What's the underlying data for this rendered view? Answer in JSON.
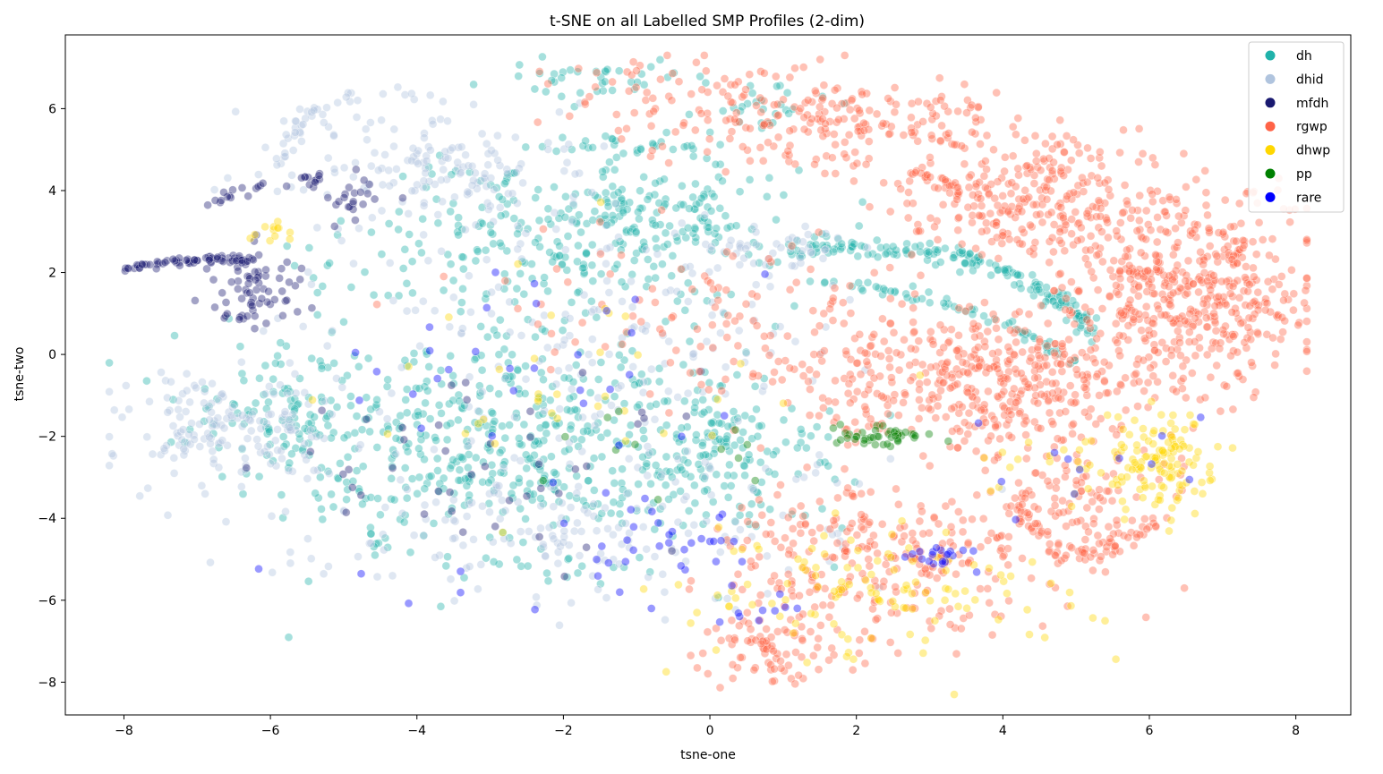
{
  "chart_data": {
    "type": "scatter",
    "title": "t-SNE on all Labelled SMP Profiles (2-dim)",
    "xlabel": "tsne-one",
    "ylabel": "tsne-two",
    "xlim": [
      -8.8,
      8.75
    ],
    "ylim": [
      -8.8,
      7.8
    ],
    "x_ticks": [
      -8,
      -6,
      -4,
      -2,
      0,
      2,
      4,
      6,
      8
    ],
    "y_ticks": [
      -8,
      -6,
      -4,
      -2,
      0,
      2,
      4,
      6
    ],
    "grid": false,
    "legend_position": "top-right",
    "marker_alpha": 0.4,
    "series": [
      {
        "name": "dh",
        "color": "#20b2aa",
        "clusters": [
          {
            "cx": -2.6,
            "cy": -2.4,
            "sx": 1.6,
            "sy": 1.5,
            "n": 520
          },
          {
            "cx": -5.8,
            "cy": -1.5,
            "sx": 0.7,
            "sy": 1.0,
            "n": 110
          },
          {
            "cx": -2.0,
            "cy": 2.8,
            "sx": 1.3,
            "sy": 1.0,
            "n": 260
          },
          {
            "cx": -0.4,
            "cy": 3.6,
            "sx": 0.6,
            "sy": 0.5,
            "n": 80
          },
          {
            "cx": 0.3,
            "cy": -2.2,
            "sx": 0.7,
            "sy": 0.8,
            "n": 110
          },
          {
            "cx": -1.6,
            "cy": 6.7,
            "sx": 0.9,
            "sy": 0.25,
            "n": 40
          },
          {
            "cx": -0.9,
            "cy": 5.1,
            "sx": 0.6,
            "sy": 0.15,
            "n": 30
          },
          {
            "cx": 0.7,
            "cy": 6.1,
            "sx": 0.4,
            "sy": 0.35,
            "n": 25
          }
        ],
        "arcs": [
          {
            "x0": 1.0,
            "y0": 2.5,
            "x1": 5.3,
            "y1": 0.4,
            "bulge": 0.2,
            "w": 0.15,
            "n": 180
          },
          {
            "x0": 1.5,
            "y0": 1.8,
            "x1": 5.0,
            "y1": -0.3,
            "bulge": 0.1,
            "w": 0.1,
            "n": 60
          }
        ]
      },
      {
        "name": "dhid",
        "color": "#b0c4de",
        "clusters": [
          {
            "cx": -6.6,
            "cy": -1.8,
            "sx": 0.8,
            "sy": 0.8,
            "n": 170
          },
          {
            "cx": -3.5,
            "cy": 4.5,
            "sx": 1.1,
            "sy": 0.8,
            "n": 170
          },
          {
            "cx": -2.0,
            "cy": -4.2,
            "sx": 1.8,
            "sy": 0.9,
            "n": 190
          },
          {
            "cx": -1.5,
            "cy": 0.2,
            "sx": 1.8,
            "sy": 1.4,
            "n": 160
          },
          {
            "cx": 0.9,
            "cy": 2.5,
            "sx": 0.7,
            "sy": 0.3,
            "n": 50
          }
        ],
        "arcs": [
          {
            "x0": -5.9,
            "y0": 4.6,
            "x1": -3.5,
            "y1": 6.2,
            "bulge": 0.3,
            "w": 0.12,
            "n": 40
          }
        ]
      },
      {
        "name": "mfdh",
        "color": "#191970",
        "clusters": [
          {
            "cx": -6.2,
            "cy": 1.6,
            "sx": 0.35,
            "sy": 0.45,
            "n": 70
          },
          {
            "cx": -4.9,
            "cy": 3.9,
            "sx": 0.35,
            "sy": 0.25,
            "n": 25
          },
          {
            "cx": -3.0,
            "cy": -2.8,
            "sx": 1.6,
            "sy": 1.3,
            "n": 45
          }
        ],
        "arcs": [
          {
            "x0": -8.0,
            "y0": 2.1,
            "x1": -6.2,
            "y1": 2.3,
            "bulge": 0.05,
            "w": 0.05,
            "n": 70
          },
          {
            "x0": -7.0,
            "y0": 3.5,
            "x1": -5.3,
            "y1": 4.3,
            "bulge": 0.1,
            "w": 0.08,
            "n": 25
          }
        ]
      },
      {
        "name": "rgwp",
        "color": "#ff6347",
        "clusters": [
          {
            "cx": 6.5,
            "cy": 1.6,
            "sx": 0.9,
            "sy": 1.2,
            "n": 520
          },
          {
            "cx": 4.5,
            "cy": 3.8,
            "sx": 0.9,
            "sy": 0.8,
            "n": 240
          },
          {
            "cx": 3.6,
            "cy": -0.7,
            "sx": 1.4,
            "sy": 0.9,
            "n": 460
          },
          {
            "cx": 2.0,
            "cy": 5.6,
            "sx": 1.2,
            "sy": 0.6,
            "n": 200
          },
          {
            "cx": 2.4,
            "cy": -5.0,
            "sx": 1.3,
            "sy": 1.0,
            "n": 300
          },
          {
            "cx": 0.8,
            "cy": -7.2,
            "sx": 0.5,
            "sy": 0.5,
            "n": 80
          },
          {
            "cx": 0.0,
            "cy": 1.2,
            "sx": 1.4,
            "sy": 0.9,
            "n": 100
          },
          {
            "cx": 4.9,
            "cy": -3.5,
            "sx": 0.7,
            "sy": 0.6,
            "n": 90
          },
          {
            "cx": -0.3,
            "cy": 6.3,
            "sx": 0.9,
            "sy": 0.5,
            "n": 70
          }
        ],
        "arcs": [
          {
            "x0": 4.2,
            "y0": -3.7,
            "x1": 6.2,
            "y1": -4.0,
            "bulge": -0.5,
            "w": 0.15,
            "n": 70
          },
          {
            "x0": 2.8,
            "y0": 4.5,
            "x1": 4.0,
            "y1": 2.8,
            "bulge": 0.1,
            "w": 0.1,
            "n": 40
          }
        ]
      },
      {
        "name": "dhwp",
        "color": "#ffd700",
        "clusters": [
          {
            "cx": 6.2,
            "cy": -2.6,
            "sx": 0.35,
            "sy": 0.6,
            "n": 120
          },
          {
            "cx": 2.3,
            "cy": -5.6,
            "sx": 1.2,
            "sy": 0.8,
            "n": 120
          },
          {
            "cx": -1.5,
            "cy": -0.5,
            "sx": 1.8,
            "sy": 1.8,
            "n": 35
          },
          {
            "cx": -6.0,
            "cy": 3.0,
            "sx": 0.15,
            "sy": 0.2,
            "n": 12
          },
          {
            "cx": 5.0,
            "cy": -2.7,
            "sx": 0.6,
            "sy": 0.4,
            "n": 25
          }
        ],
        "arcs": []
      },
      {
        "name": "pp",
        "color": "#008000",
        "clusters": [
          {
            "cx": 2.3,
            "cy": -2.0,
            "sx": 0.3,
            "sy": 0.12,
            "n": 45
          },
          {
            "cx": 0.0,
            "cy": -2.3,
            "sx": 1.0,
            "sy": 0.6,
            "n": 12
          }
        ],
        "arcs": []
      },
      {
        "name": "rare",
        "color": "#0000ff",
        "clusters": [
          {
            "cx": 3.0,
            "cy": -4.9,
            "sx": 0.3,
            "sy": 0.15,
            "n": 20
          },
          {
            "cx": -0.5,
            "cy": -4.8,
            "sx": 0.7,
            "sy": 0.5,
            "n": 30
          },
          {
            "cx": -2.5,
            "cy": -1.0,
            "sx": 1.8,
            "sy": 2.5,
            "n": 40
          },
          {
            "cx": 5.5,
            "cy": -2.5,
            "sx": 0.8,
            "sy": 0.6,
            "n": 12
          },
          {
            "cx": 0.5,
            "cy": -6.1,
            "sx": 0.4,
            "sy": 0.3,
            "n": 10
          }
        ],
        "arcs": []
      }
    ]
  }
}
